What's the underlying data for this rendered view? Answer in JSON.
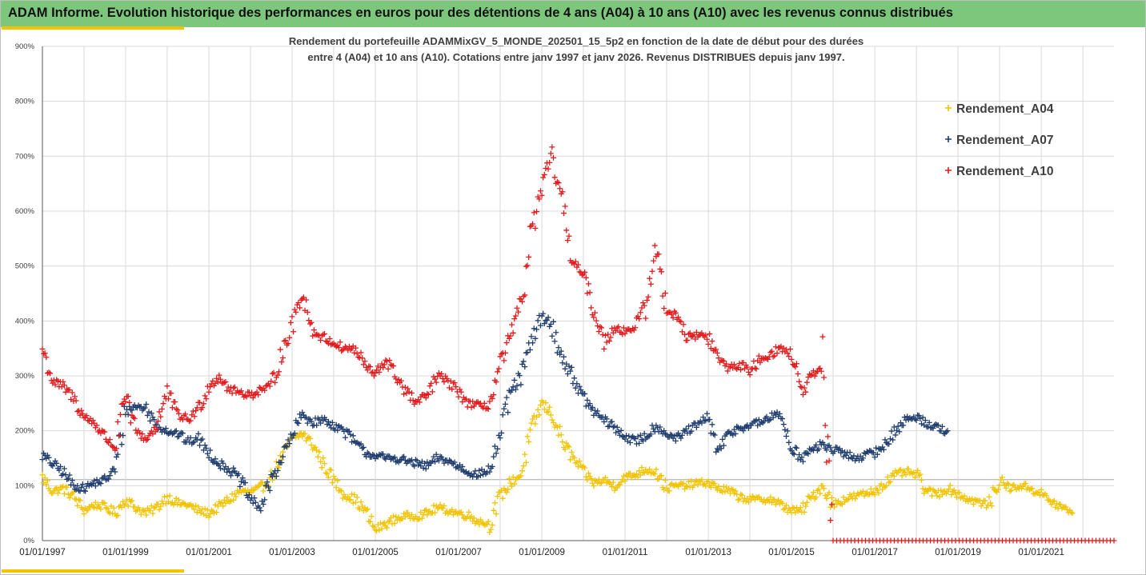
{
  "header": {
    "title": "ADAM Informe. Evolution historique des performances en euros pour des détentions de 4 ans (A04) à 10 ans (A10) avec les revenus connus distribués"
  },
  "chart_data": {
    "type": "scatter",
    "subtitle_line1": "Rendement du portefeuille ADAMMixGV_5_MONDE_202501_15_5p2 en fonction de la date de début pour des durées",
    "subtitle_line2": "entre 4 (A04) et 10 ans (A10). Cotations entre janv 1997 et janv 2026. Revenus DISTRIBUES depuis janv 1997.",
    "xlabel": "",
    "ylabel": "",
    "x_range": [
      "1997-01-01",
      "2022-10-01"
    ],
    "ylim": [
      0,
      900
    ],
    "y_ticks": [
      "0%",
      "100%",
      "200%",
      "300%",
      "400%",
      "500%",
      "600%",
      "700%",
      "800%",
      "900%"
    ],
    "x_ticks": [
      "01/01/1997",
      "01/01/1999",
      "01/01/2001",
      "01/01/2003",
      "01/01/2005",
      "01/01/2007",
      "01/01/2009",
      "01/01/2011",
      "01/01/2013",
      "01/01/2015",
      "01/01/2017",
      "01/01/2019",
      "01/01/2021"
    ],
    "grid": true,
    "legend_position": "top-right",
    "series": [
      {
        "name": "Rendement_A04",
        "color": "#f2c300",
        "points": [
          [
            "1997-01-01",
            115
          ],
          [
            "1997-04-01",
            90
          ],
          [
            "1997-07-01",
            95
          ],
          [
            "1997-10-01",
            80
          ],
          [
            "1998-01-01",
            55
          ],
          [
            "1998-04-01",
            65
          ],
          [
            "1998-07-01",
            62
          ],
          [
            "1998-10-01",
            50
          ],
          [
            "1999-01-01",
            75
          ],
          [
            "1999-04-01",
            60
          ],
          [
            "1999-07-01",
            50
          ],
          [
            "1999-10-01",
            60
          ],
          [
            "2000-01-01",
            80
          ],
          [
            "2000-04-01",
            68
          ],
          [
            "2000-07-01",
            65
          ],
          [
            "2000-10-01",
            55
          ],
          [
            "2001-01-01",
            50
          ],
          [
            "2001-04-01",
            62
          ],
          [
            "2001-07-01",
            75
          ],
          [
            "2001-10-01",
            90
          ],
          [
            "2002-01-01",
            88
          ],
          [
            "2002-04-01",
            95
          ],
          [
            "2002-07-01",
            115
          ],
          [
            "2002-10-01",
            150
          ],
          [
            "2003-01-01",
            185
          ],
          [
            "2003-04-01",
            195
          ],
          [
            "2003-07-01",
            175
          ],
          [
            "2003-10-01",
            140
          ],
          [
            "2004-01-01",
            110
          ],
          [
            "2004-04-01",
            85
          ],
          [
            "2004-07-01",
            75
          ],
          [
            "2004-10-01",
            55
          ],
          [
            "2005-01-01",
            20
          ],
          [
            "2005-04-01",
            30
          ],
          [
            "2005-07-01",
            40
          ],
          [
            "2005-10-01",
            45
          ],
          [
            "2006-01-01",
            45
          ],
          [
            "2006-04-01",
            50
          ],
          [
            "2006-07-01",
            60
          ],
          [
            "2006-10-01",
            55
          ],
          [
            "2007-01-01",
            50
          ],
          [
            "2007-04-01",
            45
          ],
          [
            "2007-07-01",
            35
          ],
          [
            "2007-10-01",
            30
          ],
          [
            "2008-01-01",
            80
          ],
          [
            "2008-04-01",
            105
          ],
          [
            "2008-07-01",
            120
          ],
          [
            "2008-10-01",
            200
          ],
          [
            "2009-01-01",
            250
          ],
          [
            "2009-04-01",
            230
          ],
          [
            "2009-07-01",
            180
          ],
          [
            "2009-10-01",
            150
          ],
          [
            "2010-01-01",
            125
          ],
          [
            "2010-04-01",
            105
          ],
          [
            "2010-07-01",
            110
          ],
          [
            "2010-10-01",
            100
          ],
          [
            "2011-01-01",
            115
          ],
          [
            "2011-04-01",
            120
          ],
          [
            "2011-07-01",
            130
          ],
          [
            "2011-10-01",
            125
          ],
          [
            "2012-01-01",
            95
          ],
          [
            "2012-04-01",
            100
          ],
          [
            "2012-07-01",
            100
          ],
          [
            "2012-10-01",
            105
          ],
          [
            "2013-01-01",
            105
          ],
          [
            "2013-04-01",
            95
          ],
          [
            "2013-07-01",
            90
          ],
          [
            "2013-10-01",
            80
          ],
          [
            "2014-01-01",
            75
          ],
          [
            "2014-04-01",
            75
          ],
          [
            "2014-07-01",
            75
          ],
          [
            "2014-10-01",
            65
          ],
          [
            "2015-01-01",
            55
          ],
          [
            "2015-04-01",
            55
          ],
          [
            "2015-07-01",
            80
          ],
          [
            "2015-10-01",
            100
          ],
          [
            "2016-01-01",
            65
          ],
          [
            "2016-04-01",
            75
          ],
          [
            "2016-07-01",
            80
          ],
          [
            "2016-10-01",
            85
          ],
          [
            "2017-01-01",
            90
          ],
          [
            "2017-04-01",
            105
          ],
          [
            "2017-07-01",
            120
          ],
          [
            "2017-10-01",
            125
          ],
          [
            "2018-01-01",
            120
          ],
          [
            "2018-04-01",
            90
          ],
          [
            "2018-07-01",
            85
          ],
          [
            "2018-10-01",
            95
          ],
          [
            "2019-01-01",
            85
          ],
          [
            "2019-04-01",
            75
          ],
          [
            "2019-07-01",
            70
          ],
          [
            "2019-10-01",
            65
          ],
          [
            "2020-01-01",
            110
          ],
          [
            "2020-04-01",
            95
          ],
          [
            "2020-07-01",
            100
          ],
          [
            "2020-10-01",
            95
          ],
          [
            "2021-01-01",
            85
          ],
          [
            "2021-04-01",
            70
          ],
          [
            "2021-07-01",
            60
          ],
          [
            "2021-10-01",
            50
          ]
        ]
      },
      {
        "name": "Rendement_A07",
        "color": "#1f3d6e",
        "points": [
          [
            "1997-01-01",
            155
          ],
          [
            "1997-04-01",
            140
          ],
          [
            "1997-07-01",
            125
          ],
          [
            "1997-10-01",
            100
          ],
          [
            "1998-01-01",
            95
          ],
          [
            "1998-04-01",
            105
          ],
          [
            "1998-07-01",
            110
          ],
          [
            "1998-10-01",
            130
          ],
          [
            "1999-01-01",
            235
          ],
          [
            "1999-04-01",
            245
          ],
          [
            "1999-07-01",
            240
          ],
          [
            "1999-10-01",
            210
          ],
          [
            "2000-01-01",
            200
          ],
          [
            "2000-04-01",
            195
          ],
          [
            "2000-07-01",
            180
          ],
          [
            "2000-10-01",
            185
          ],
          [
            "2001-01-01",
            160
          ],
          [
            "2001-04-01",
            140
          ],
          [
            "2001-07-01",
            130
          ],
          [
            "2001-10-01",
            110
          ],
          [
            "2002-01-01",
            75
          ],
          [
            "2002-04-01",
            60
          ],
          [
            "2002-07-01",
            110
          ],
          [
            "2002-10-01",
            150
          ],
          [
            "2003-01-01",
            190
          ],
          [
            "2003-04-01",
            230
          ],
          [
            "2003-07-01",
            215
          ],
          [
            "2003-10-01",
            220
          ],
          [
            "2004-01-01",
            210
          ],
          [
            "2004-04-01",
            200
          ],
          [
            "2004-07-01",
            180
          ],
          [
            "2004-10-01",
            160
          ],
          [
            "2005-01-01",
            155
          ],
          [
            "2005-04-01",
            150
          ],
          [
            "2005-07-01",
            150
          ],
          [
            "2005-10-01",
            145
          ],
          [
            "2006-01-01",
            140
          ],
          [
            "2006-04-01",
            135
          ],
          [
            "2006-07-01",
            150
          ],
          [
            "2006-10-01",
            145
          ],
          [
            "2007-01-01",
            135
          ],
          [
            "2007-04-01",
            125
          ],
          [
            "2007-07-01",
            120
          ],
          [
            "2007-10-01",
            130
          ],
          [
            "2008-01-01",
            190
          ],
          [
            "2008-04-01",
            270
          ],
          [
            "2008-07-01",
            300
          ],
          [
            "2008-10-01",
            360
          ],
          [
            "2009-01-01",
            410
          ],
          [
            "2009-04-01",
            390
          ],
          [
            "2009-07-01",
            330
          ],
          [
            "2009-10-01",
            300
          ],
          [
            "2010-01-01",
            260
          ],
          [
            "2010-04-01",
            235
          ],
          [
            "2010-07-01",
            220
          ],
          [
            "2010-10-01",
            205
          ],
          [
            "2011-01-01",
            190
          ],
          [
            "2011-04-01",
            180
          ],
          [
            "2011-07-01",
            190
          ],
          [
            "2011-10-01",
            210
          ],
          [
            "2012-01-01",
            195
          ],
          [
            "2012-04-01",
            185
          ],
          [
            "2012-07-01",
            200
          ],
          [
            "2012-10-01",
            210
          ],
          [
            "2013-01-01",
            225
          ],
          [
            "2013-04-01",
            160
          ],
          [
            "2013-07-01",
            195
          ],
          [
            "2013-10-01",
            205
          ],
          [
            "2014-01-01",
            210
          ],
          [
            "2014-04-01",
            215
          ],
          [
            "2014-07-01",
            225
          ],
          [
            "2014-10-01",
            230
          ],
          [
            "2015-01-01",
            170
          ],
          [
            "2015-04-01",
            150
          ],
          [
            "2015-07-01",
            165
          ],
          [
            "2015-10-01",
            175
          ],
          [
            "2016-01-01",
            165
          ],
          [
            "2016-04-01",
            160
          ],
          [
            "2016-07-01",
            150
          ],
          [
            "2016-10-01",
            155
          ],
          [
            "2017-01-01",
            160
          ],
          [
            "2017-04-01",
            175
          ],
          [
            "2017-07-01",
            200
          ],
          [
            "2017-10-01",
            220
          ],
          [
            "2018-01-01",
            225
          ],
          [
            "2018-04-01",
            215
          ],
          [
            "2018-07-01",
            205
          ],
          [
            "2018-10-01",
            200
          ]
        ]
      },
      {
        "name": "Rendement_A10",
        "color": "#e31a1c",
        "points": [
          [
            "1997-01-01",
            350
          ],
          [
            "1997-04-01",
            290
          ],
          [
            "1997-07-01",
            280
          ],
          [
            "1997-10-01",
            260
          ],
          [
            "1998-01-01",
            225
          ],
          [
            "1998-04-01",
            215
          ],
          [
            "1998-07-01",
            190
          ],
          [
            "1998-10-01",
            170
          ],
          [
            "1999-01-01",
            260
          ],
          [
            "1999-04-01",
            200
          ],
          [
            "1999-07-01",
            185
          ],
          [
            "1999-10-01",
            210
          ],
          [
            "2000-01-01",
            270
          ],
          [
            "2000-04-01",
            230
          ],
          [
            "2000-07-01",
            220
          ],
          [
            "2000-10-01",
            240
          ],
          [
            "2001-01-01",
            280
          ],
          [
            "2001-04-01",
            300
          ],
          [
            "2001-07-01",
            275
          ],
          [
            "2001-10-01",
            270
          ],
          [
            "2002-01-01",
            265
          ],
          [
            "2002-04-01",
            275
          ],
          [
            "2002-07-01",
            280
          ],
          [
            "2002-10-01",
            340
          ],
          [
            "2003-01-01",
            390
          ],
          [
            "2003-04-01",
            455
          ],
          [
            "2003-07-01",
            380
          ],
          [
            "2003-10-01",
            370
          ],
          [
            "2004-01-01",
            360
          ],
          [
            "2004-04-01",
            350
          ],
          [
            "2004-07-01",
            350
          ],
          [
            "2004-10-01",
            320
          ],
          [
            "2005-01-01",
            300
          ],
          [
            "2005-04-01",
            330
          ],
          [
            "2005-07-01",
            300
          ],
          [
            "2005-10-01",
            270
          ],
          [
            "2006-01-01",
            250
          ],
          [
            "2006-04-01",
            265
          ],
          [
            "2006-07-01",
            300
          ],
          [
            "2006-10-01",
            290
          ],
          [
            "2007-01-01",
            270
          ],
          [
            "2007-04-01",
            250
          ],
          [
            "2007-07-01",
            245
          ],
          [
            "2007-10-01",
            245
          ],
          [
            "2008-01-01",
            320
          ],
          [
            "2008-04-01",
            370
          ],
          [
            "2008-07-01",
            430
          ],
          [
            "2008-10-01",
            560
          ],
          [
            "2009-01-01",
            640
          ],
          [
            "2009-04-01",
            700
          ],
          [
            "2009-07-01",
            610
          ],
          [
            "2009-10-01",
            510
          ],
          [
            "2010-01-01",
            480
          ],
          [
            "2010-04-01",
            420
          ],
          [
            "2010-07-01",
            360
          ],
          [
            "2010-10-01",
            390
          ],
          [
            "2011-01-01",
            380
          ],
          [
            "2011-04-01",
            390
          ],
          [
            "2011-07-01",
            430
          ],
          [
            "2011-10-01",
            530
          ],
          [
            "2012-01-01",
            420
          ],
          [
            "2012-04-01",
            410
          ],
          [
            "2012-07-01",
            370
          ],
          [
            "2012-10-01",
            375
          ],
          [
            "2013-01-01",
            370
          ],
          [
            "2013-04-01",
            330
          ],
          [
            "2013-07-01",
            315
          ],
          [
            "2013-10-01",
            320
          ],
          [
            "2014-01-01",
            310
          ],
          [
            "2014-04-01",
            330
          ],
          [
            "2014-07-01",
            340
          ],
          [
            "2014-10-01",
            350
          ],
          [
            "2015-01-01",
            340
          ],
          [
            "2015-04-01",
            270
          ],
          [
            "2015-07-01",
            300
          ],
          [
            "2015-10-01",
            310
          ],
          [
            "2016-01-01",
            0
          ],
          [
            "2022-10-01",
            0
          ]
        ]
      }
    ]
  }
}
